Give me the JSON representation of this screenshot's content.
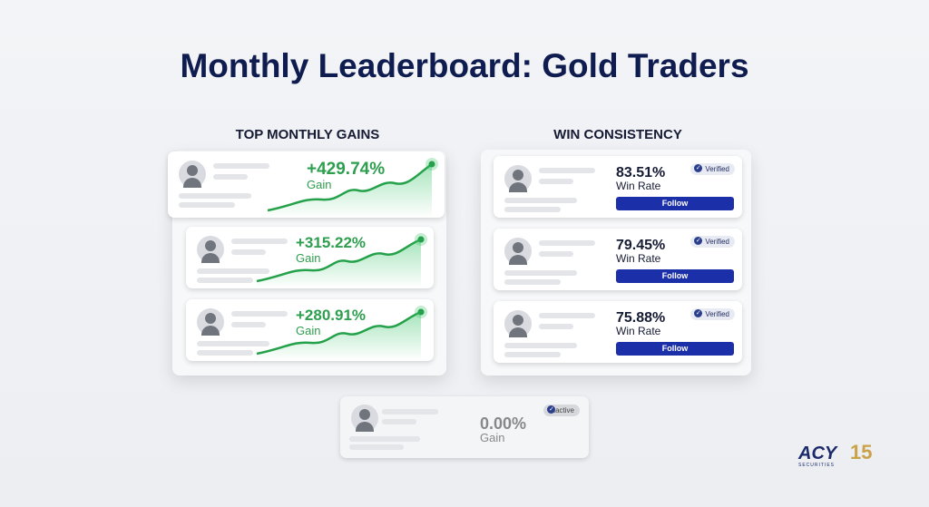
{
  "title": "Monthly Leaderboard: Gold Traders",
  "gains": {
    "heading": "TOP MONTHLY GAINS",
    "cards": [
      {
        "value": "+429.74%",
        "label": "Gain"
      },
      {
        "value": "+315.22%",
        "label": "Gain"
      },
      {
        "value": "+280.91%",
        "label": "Gain"
      }
    ]
  },
  "consistency": {
    "heading": "WIN CONSISTENCY",
    "cards": [
      {
        "value": "83.51%",
        "label": "Win Rate",
        "badge": "Verified",
        "button": "Follow"
      },
      {
        "value": "79.45%",
        "label": "Win Rate",
        "badge": "Verified",
        "button": "Follow"
      },
      {
        "value": "75.88%",
        "label": "Win Rate",
        "badge": "Verified",
        "button": "Follow"
      }
    ]
  },
  "inactive": {
    "badge": "Inactive",
    "value": "0.00%",
    "label": "Gain"
  },
  "logo": {
    "brand": "ACY",
    "sub": "SECURITIES",
    "years": "15"
  }
}
